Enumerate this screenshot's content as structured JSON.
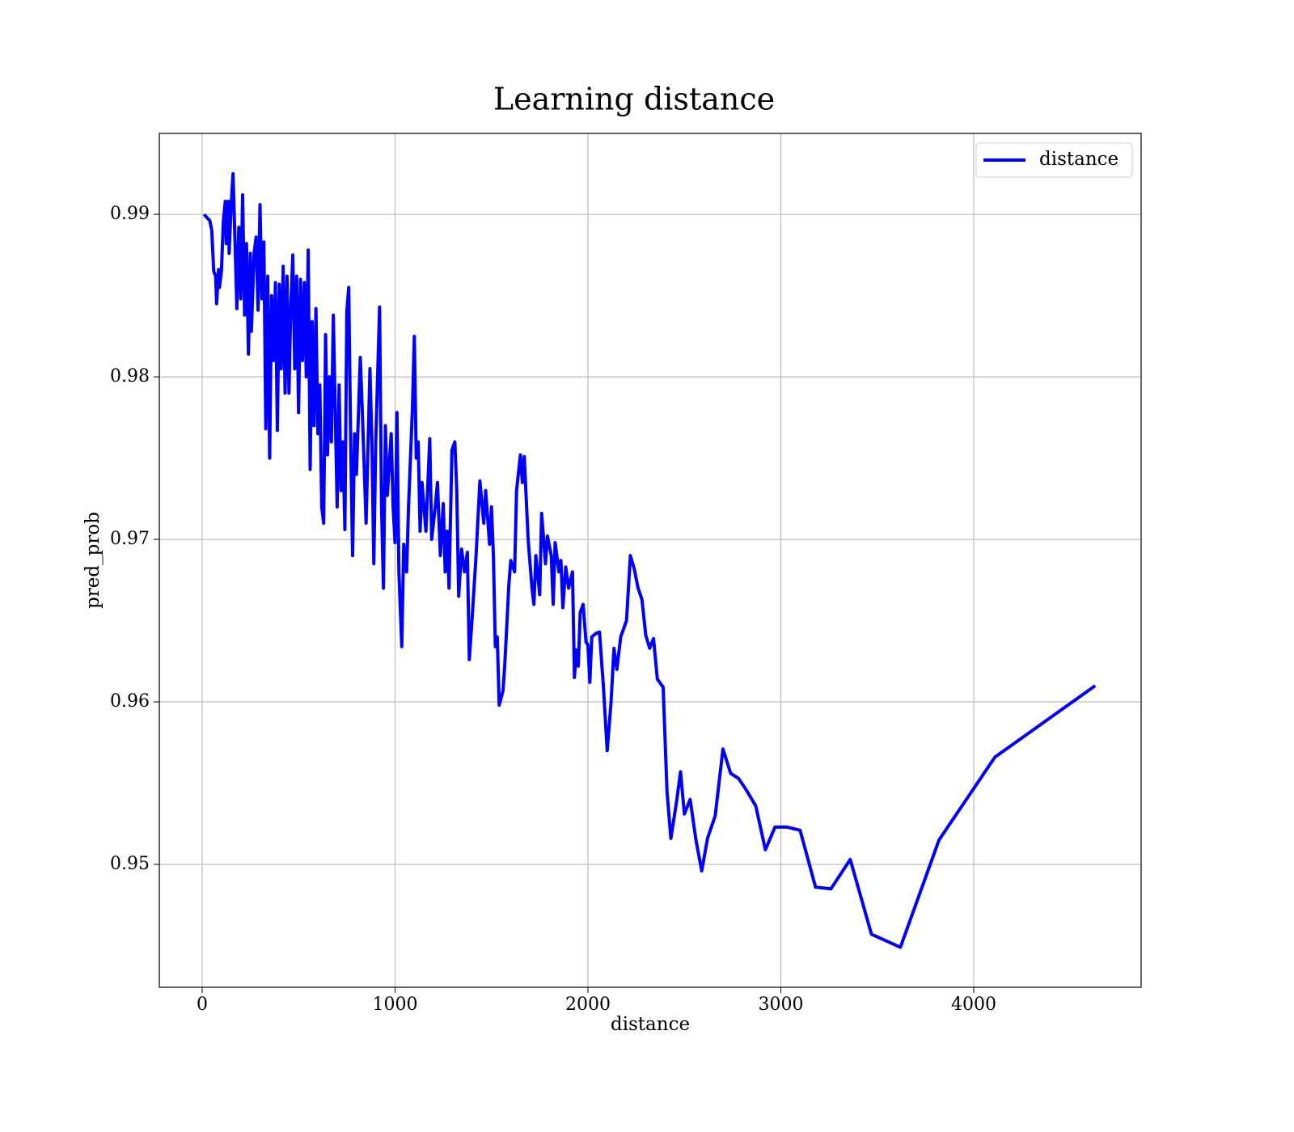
{
  "chart_data": {
    "type": "line",
    "title": "Learning distance",
    "x_label": "distance",
    "y_label": "pred_prob",
    "x": [
      10,
      40,
      50,
      60,
      70,
      75,
      85,
      90,
      100,
      110,
      120,
      125,
      135,
      140,
      150,
      160,
      170,
      180,
      190,
      200,
      210,
      220,
      230,
      240,
      250,
      255,
      270,
      280,
      290,
      300,
      310,
      320,
      330,
      340,
      350,
      360,
      370,
      380,
      390,
      400,
      410,
      420,
      430,
      440,
      450,
      460,
      470,
      480,
      490,
      500,
      510,
      520,
      530,
      540,
      550,
      560,
      570,
      580,
      590,
      600,
      610,
      620,
      630,
      640,
      650,
      660,
      670,
      680,
      690,
      700,
      710,
      720,
      730,
      740,
      750,
      760,
      770,
      780,
      790,
      800,
      820,
      830,
      850,
      870,
      880,
      890,
      900,
      920,
      930,
      940,
      950,
      960,
      980,
      990,
      1000,
      1010,
      1020,
      1035,
      1045,
      1060,
      1070,
      1090,
      1100,
      1110,
      1120,
      1130,
      1140,
      1160,
      1180,
      1190,
      1210,
      1220,
      1235,
      1250,
      1260,
      1270,
      1280,
      1295,
      1310,
      1320,
      1330,
      1345,
      1360,
      1375,
      1385,
      1400,
      1420,
      1440,
      1460,
      1470,
      1490,
      1500,
      1510,
      1520,
      1530,
      1540,
      1560,
      1570,
      1590,
      1600,
      1620,
      1630,
      1650,
      1660,
      1670,
      1690,
      1710,
      1720,
      1730,
      1750,
      1760,
      1780,
      1790,
      1810,
      1820,
      1830,
      1850,
      1860,
      1870,
      1885,
      1900,
      1920,
      1930,
      1940,
      1950,
      1960,
      1975,
      1990,
      2000,
      2010,
      2020,
      2040,
      2060,
      2080,
      2100,
      2120,
      2135,
      2150,
      2170,
      2200,
      2220,
      2240,
      2260,
      2280,
      2300,
      2320,
      2340,
      2360,
      2390,
      2410,
      2430,
      2460,
      2480,
      2500,
      2530,
      2560,
      2590,
      2620,
      2660,
      2700,
      2740,
      2780,
      2820,
      2870,
      2920,
      2970,
      3030,
      3100,
      3180,
      3260,
      3360,
      3470,
      3620,
      3820,
      4110,
      4630
    ],
    "series": [
      {
        "name": "distance",
        "color": "#0000ff",
        "values": [
          0.99,
          0.9896,
          0.989,
          0.9865,
          0.9862,
          0.9845,
          0.9866,
          0.9855,
          0.9865,
          0.9896,
          0.9908,
          0.9882,
          0.9908,
          0.9876,
          0.9905,
          0.9925,
          0.9885,
          0.9842,
          0.9892,
          0.9848,
          0.9912,
          0.9838,
          0.9882,
          0.9814,
          0.9876,
          0.9828,
          0.9877,
          0.9886,
          0.9841,
          0.9906,
          0.9848,
          0.9883,
          0.9768,
          0.9862,
          0.975,
          0.985,
          0.981,
          0.9858,
          0.9767,
          0.9857,
          0.9805,
          0.9868,
          0.979,
          0.9862,
          0.979,
          0.9845,
          0.9875,
          0.9805,
          0.9862,
          0.9778,
          0.986,
          0.981,
          0.9858,
          0.98,
          0.9878,
          0.9743,
          0.9834,
          0.977,
          0.9842,
          0.9765,
          0.9795,
          0.972,
          0.971,
          0.9826,
          0.9752,
          0.98,
          0.976,
          0.9838,
          0.978,
          0.972,
          0.9795,
          0.973,
          0.976,
          0.9706,
          0.984,
          0.9855,
          0.976,
          0.969,
          0.9765,
          0.974,
          0.9812,
          0.978,
          0.971,
          0.9805,
          0.976,
          0.9685,
          0.976,
          0.9843,
          0.972,
          0.967,
          0.977,
          0.9727,
          0.9765,
          0.972,
          0.9698,
          0.9778,
          0.968,
          0.9634,
          0.9697,
          0.968,
          0.972,
          0.978,
          0.9825,
          0.975,
          0.976,
          0.9705,
          0.9735,
          0.9705,
          0.9762,
          0.97,
          0.9722,
          0.9735,
          0.969,
          0.9722,
          0.968,
          0.9705,
          0.967,
          0.9755,
          0.976,
          0.973,
          0.9665,
          0.9694,
          0.968,
          0.9692,
          0.9626,
          0.9652,
          0.969,
          0.9736,
          0.971,
          0.973,
          0.9697,
          0.972,
          0.969,
          0.9634,
          0.964,
          0.9598,
          0.9607,
          0.9625,
          0.9672,
          0.9687,
          0.968,
          0.973,
          0.9752,
          0.9735,
          0.9751,
          0.97,
          0.967,
          0.966,
          0.969,
          0.9666,
          0.9716,
          0.9685,
          0.9702,
          0.969,
          0.966,
          0.9698,
          0.968,
          0.9687,
          0.9658,
          0.9683,
          0.967,
          0.968,
          0.9615,
          0.9632,
          0.9622,
          0.9655,
          0.966,
          0.9637,
          0.9635,
          0.9612,
          0.964,
          0.9642,
          0.9643,
          0.961,
          0.957,
          0.96,
          0.9633,
          0.962,
          0.964,
          0.965,
          0.969,
          0.9682,
          0.967,
          0.9663,
          0.9641,
          0.9633,
          0.9639,
          0.9614,
          0.9609,
          0.9545,
          0.9516,
          0.9539,
          0.9557,
          0.9531,
          0.954,
          0.9515,
          0.9496,
          0.9516,
          0.953,
          0.9571,
          0.9556,
          0.9553,
          0.9546,
          0.9536,
          0.9509,
          0.9523,
          0.9523,
          0.9521,
          0.9486,
          0.9485,
          0.9503,
          0.9457,
          0.9449,
          0.9515,
          0.9566,
          0.961
        ]
      }
    ],
    "xlim": [
      -222,
      4868
    ],
    "ylim": [
      0.94244,
      0.99498
    ],
    "xticks": [
      0,
      1000,
      2000,
      3000,
      4000
    ],
    "yticks": [
      0.95,
      0.96,
      0.97,
      0.98,
      0.99
    ],
    "grid": true,
    "legend": "upper right"
  }
}
